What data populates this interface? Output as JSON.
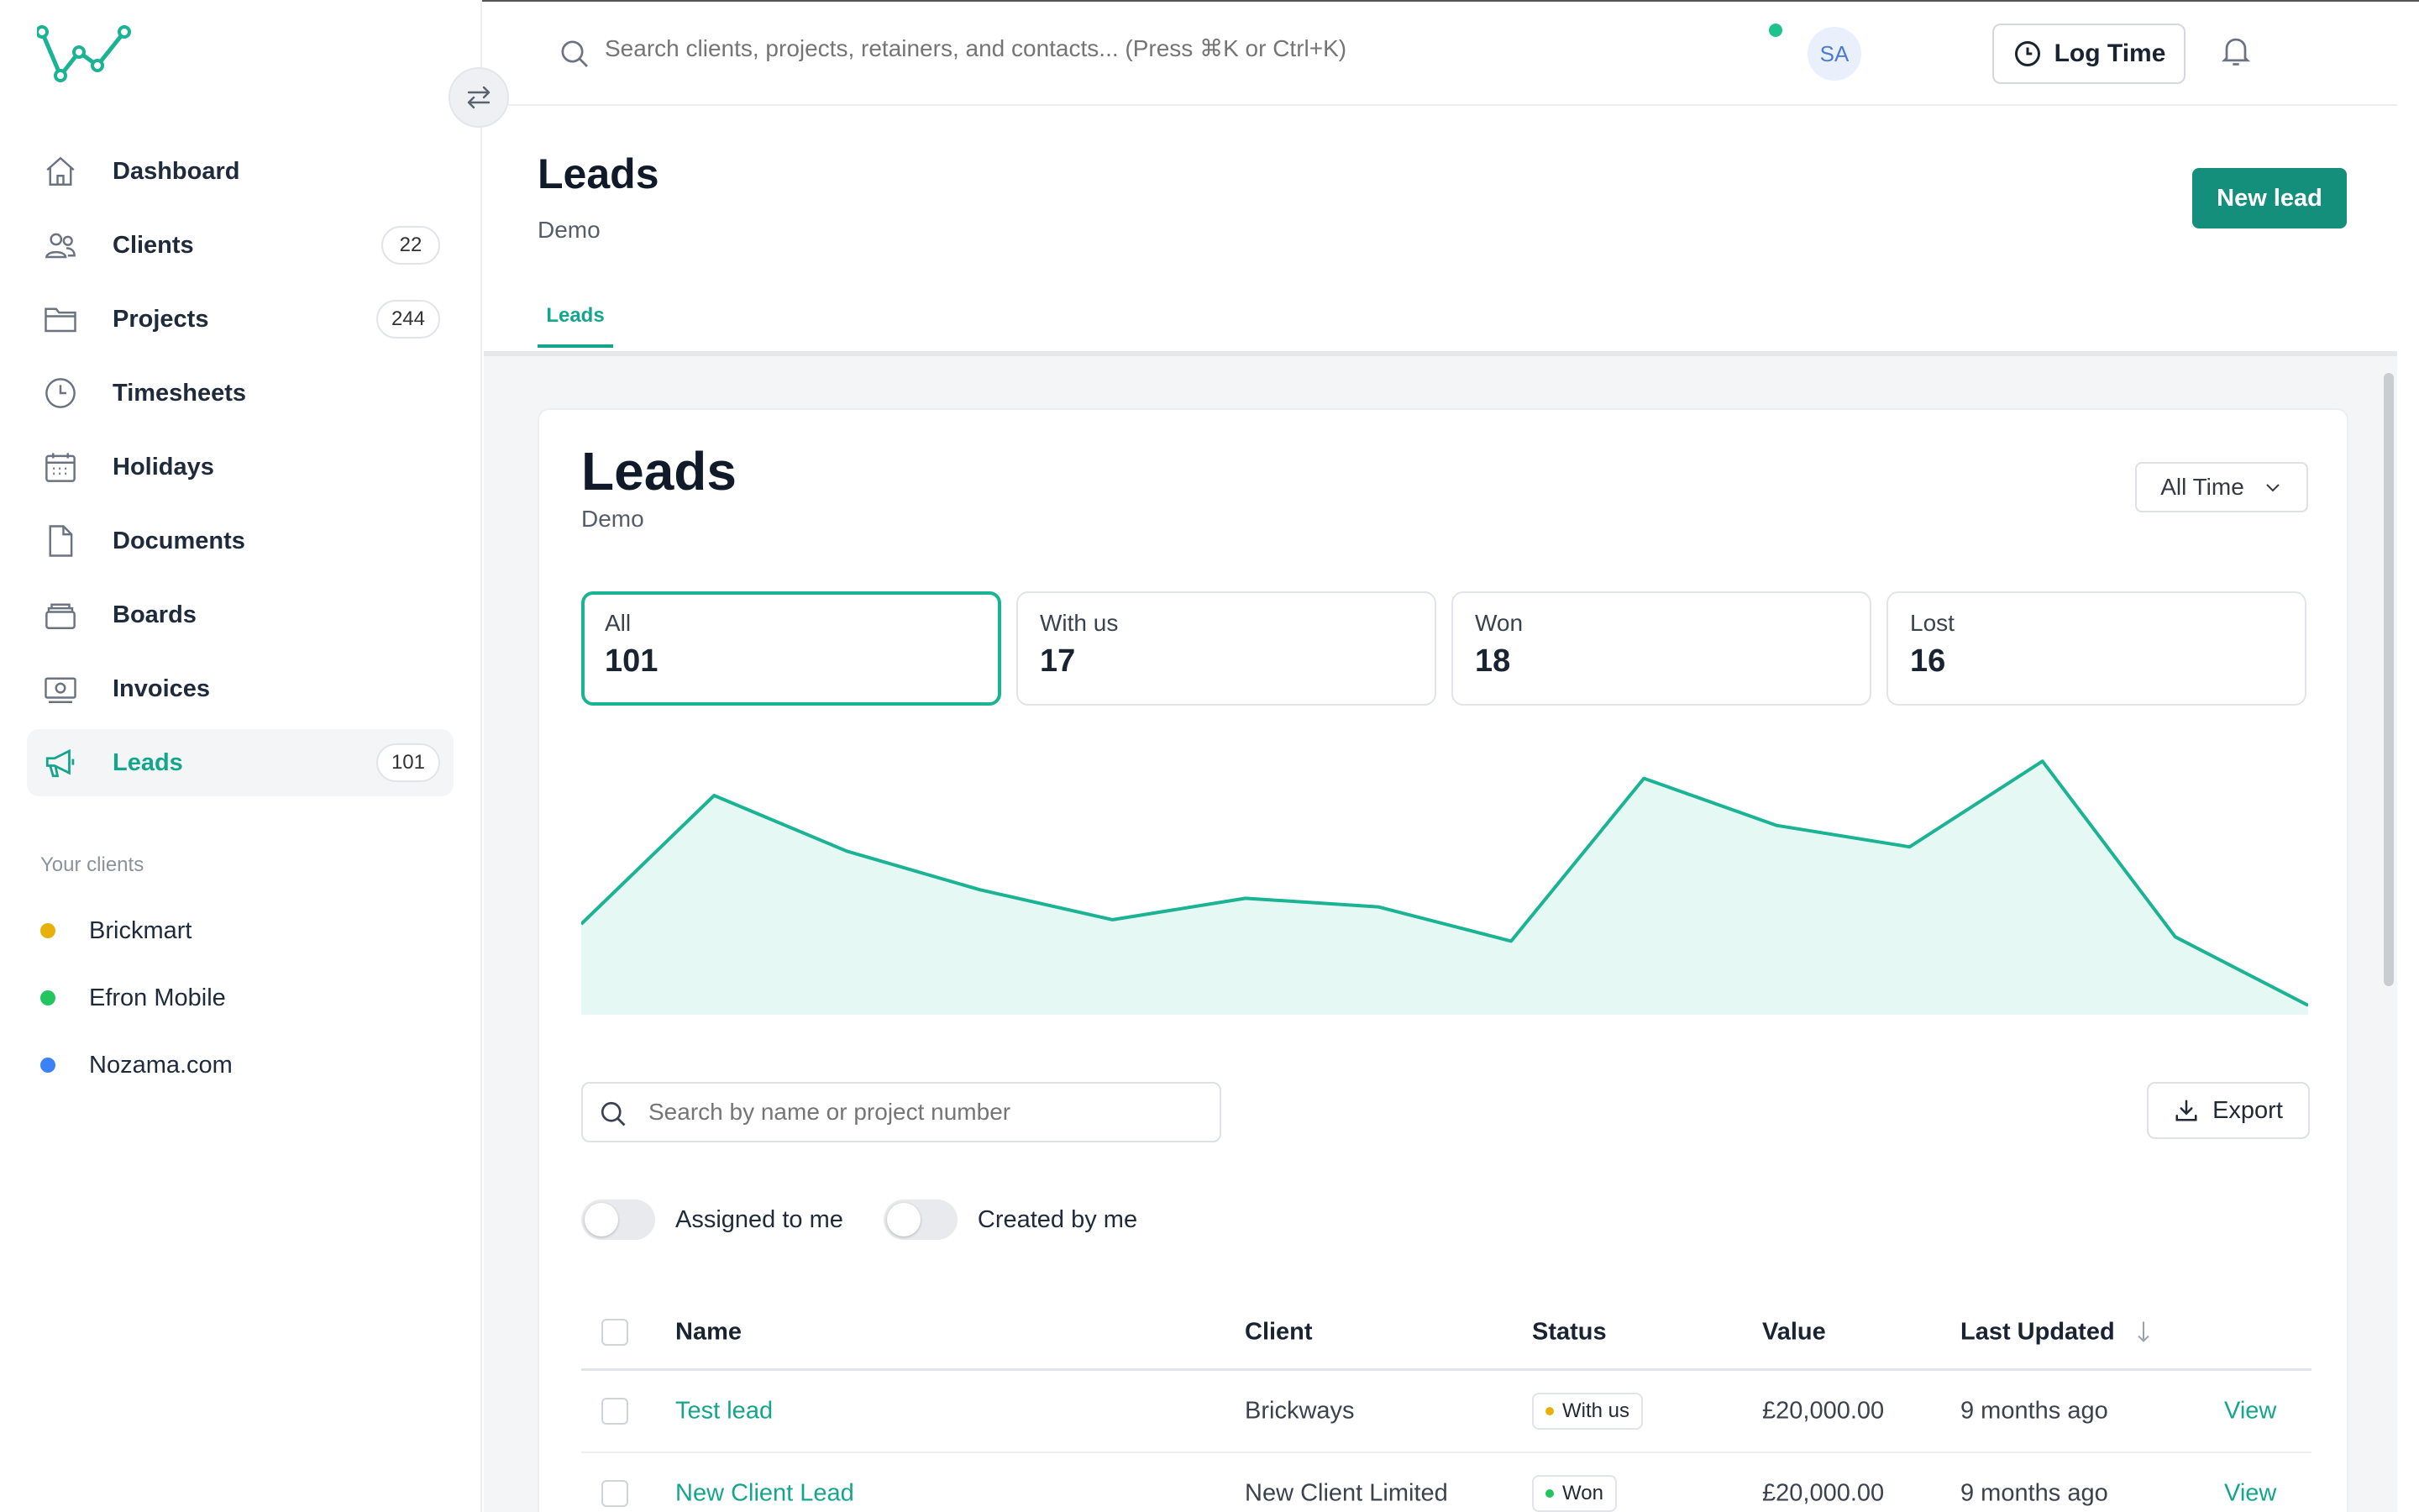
{
  "search": {
    "placeholder": "Search clients, projects, retainers, and contacts... (Press ⌘K or Ctrl+K)"
  },
  "topbar": {
    "log_time": "Log Time",
    "avatar_initials": "SA"
  },
  "sidebar": {
    "items": [
      {
        "label": "Dashboard",
        "icon": "home-icon"
      },
      {
        "label": "Clients",
        "count": "22",
        "icon": "users-icon"
      },
      {
        "label": "Projects",
        "count": "244",
        "icon": "folder-icon"
      },
      {
        "label": "Timesheets",
        "icon": "clock-icon"
      },
      {
        "label": "Holidays",
        "icon": "calendar-icon"
      },
      {
        "label": "Documents",
        "icon": "document-icon"
      },
      {
        "label": "Boards",
        "icon": "boards-icon"
      },
      {
        "label": "Invoices",
        "icon": "invoice-icon"
      },
      {
        "label": "Leads",
        "count": "101",
        "icon": "megaphone-icon",
        "active": true
      }
    ],
    "clients_title": "Your clients",
    "clients": [
      {
        "label": "Brickmart",
        "color": "#e8b00a"
      },
      {
        "label": "Efron Mobile",
        "color": "#22c55e"
      },
      {
        "label": "Nozama.com",
        "color": "#3b82f6"
      }
    ]
  },
  "header": {
    "title": "Leads",
    "subtitle": "Demo",
    "new_lead": "New lead",
    "tab": "Leads"
  },
  "card": {
    "title": "Leads",
    "subtitle": "Demo",
    "range": "All Time"
  },
  "stats": [
    {
      "label": "All",
      "value": "101"
    },
    {
      "label": "With us",
      "value": "17"
    },
    {
      "label": "Won",
      "value": "18"
    },
    {
      "label": "Lost",
      "value": "16"
    }
  ],
  "chart_data": {
    "type": "area",
    "color": "#1ab394",
    "fill": "#e6f8f3",
    "values": [
      10,
      25,
      18.5,
      14,
      10.5,
      13,
      12,
      8,
      27,
      21.5,
      19,
      29,
      8.5,
      0.5
    ],
    "ylim": [
      0,
      30
    ]
  },
  "filters": {
    "search_placeholder": "Search by name or project number",
    "export": "Export",
    "assigned": "Assigned to me",
    "created": "Created by me"
  },
  "table": {
    "headers": {
      "name": "Name",
      "client": "Client",
      "status": "Status",
      "value": "Value",
      "updated": "Last Updated"
    },
    "rows": [
      {
        "name": "Test lead",
        "client": "Brickways",
        "status": "With us",
        "status_color": "#e8b00a",
        "value": "£20,000.00",
        "updated": "9 months ago",
        "action": "View"
      },
      {
        "name": "New Client Lead",
        "client": "New Client Limited",
        "status": "Won",
        "status_color": "#22c55e",
        "value": "£20,000.00",
        "updated": "9 months ago",
        "action": "View"
      }
    ]
  }
}
